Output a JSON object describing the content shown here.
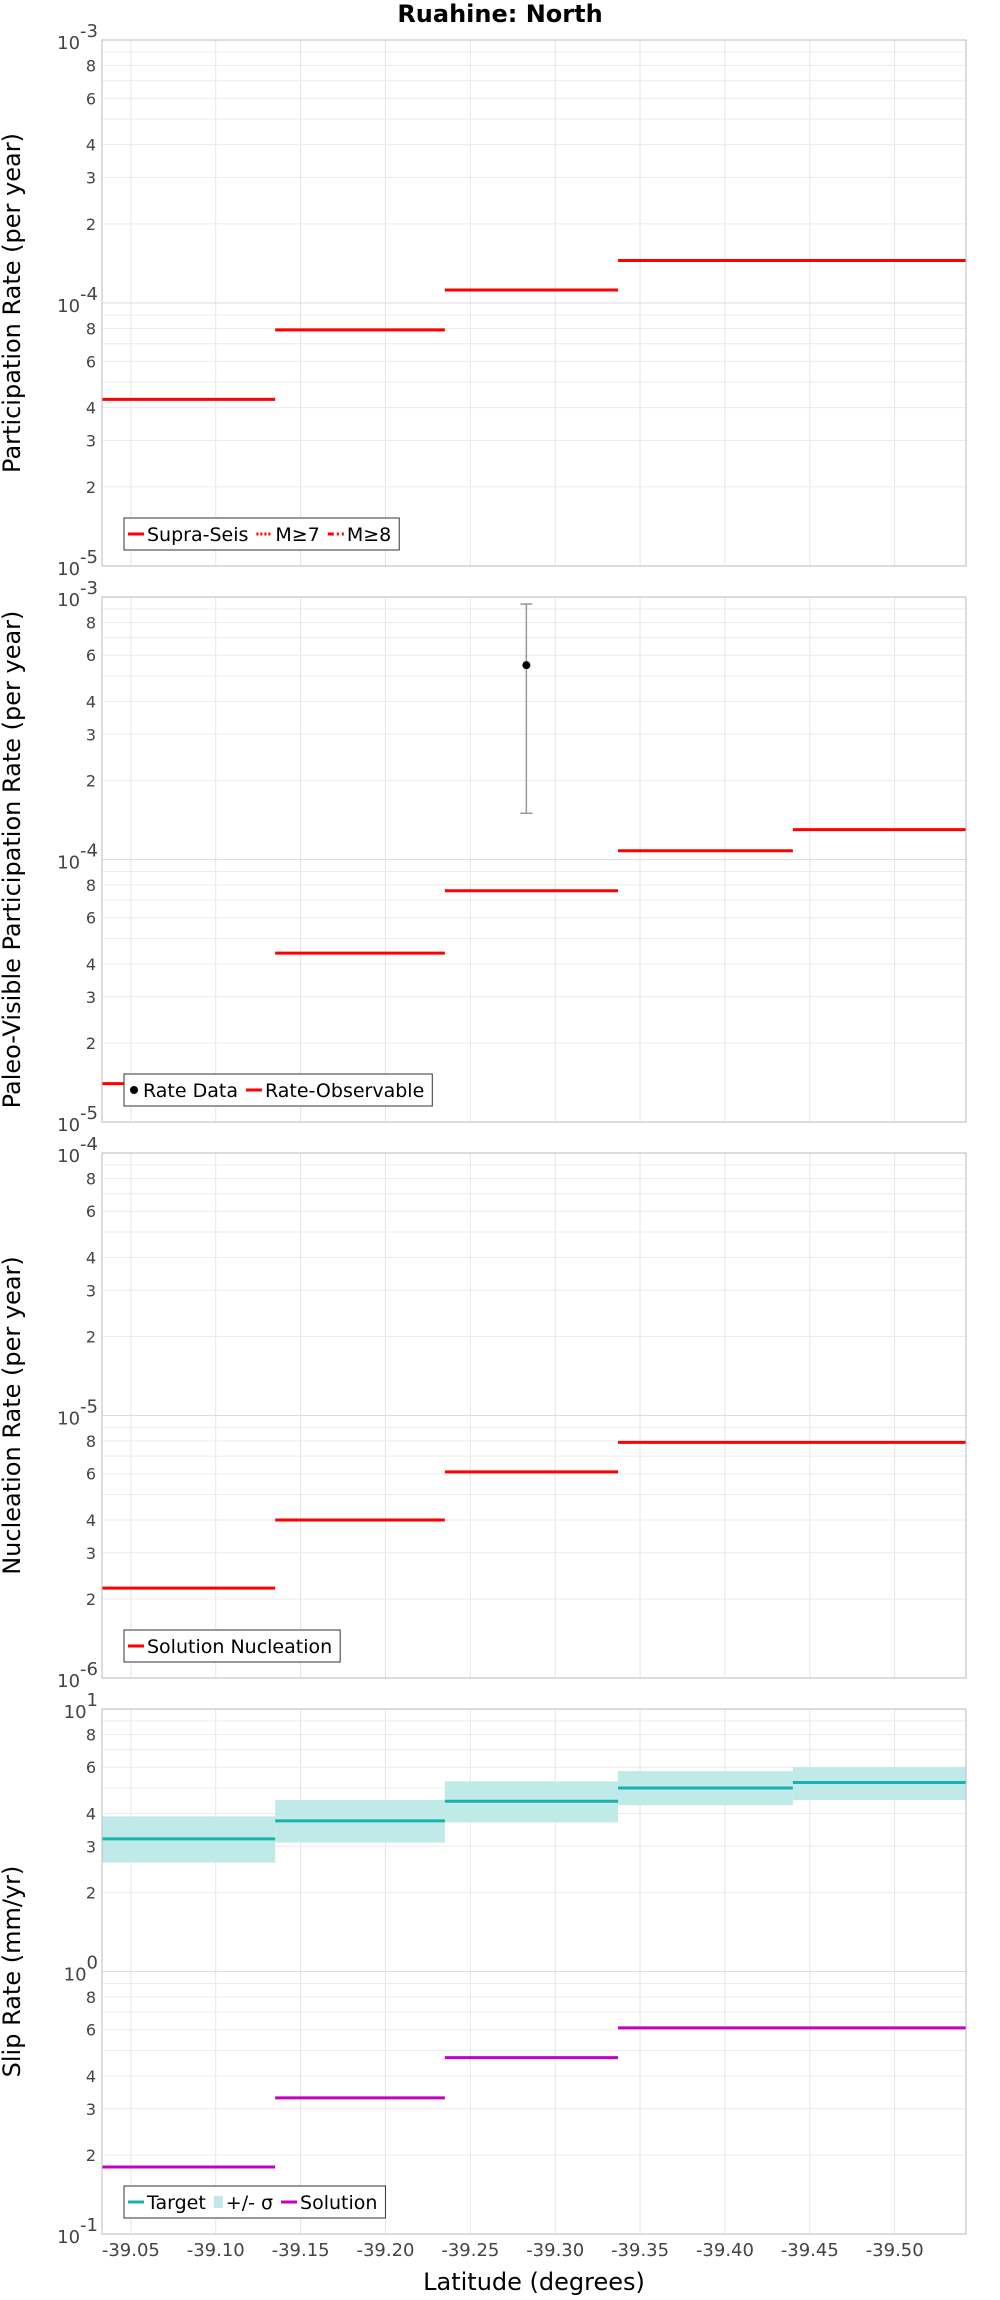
{
  "chart_data": {
    "type": "line",
    "title": "Ruahine: North",
    "xlabel": "Latitude (degrees)",
    "xlim": [
      -39.033,
      -39.542
    ],
    "xticks": [
      -39.05,
      -39.1,
      -39.15,
      -39.2,
      -39.25,
      -39.3,
      -39.35,
      -39.4,
      -39.45,
      -39.5
    ],
    "xtick_labels": [
      "-39.05",
      "-39.10",
      "-39.15",
      "-39.20",
      "-39.25",
      "-39.30",
      "-39.35",
      "-39.40",
      "-39.45",
      "-39.50"
    ],
    "panels": [
      {
        "key": "participation",
        "ylabel": "Participation Rate (per year)",
        "yscale": "log",
        "ylim": [
          1e-05,
          0.001
        ],
        "major_labels": [
          {
            "base": "10",
            "exp": "-5"
          },
          {
            "base": "10",
            "exp": "-4"
          },
          {
            "base": "10",
            "exp": "-3"
          }
        ],
        "minor_tick_labels": [
          "2",
          "3",
          "4",
          "6",
          "8"
        ],
        "series": [
          {
            "name": "Supra-Seis",
            "color": "#ff0000",
            "dash": "",
            "segments": [
              [
                -39.033,
                -39.135,
                4.3e-05
              ],
              [
                -39.135,
                -39.235,
                7.9e-05
              ],
              [
                -39.235,
                -39.337,
                0.000112
              ],
              [
                -39.337,
                -39.542,
                0.000145
              ]
            ]
          },
          {
            "name": "M≥7",
            "color": "#ff0000",
            "dash": "2,2",
            "segments": [
              [
                -39.235,
                -39.337,
                0.000112
              ]
            ]
          },
          {
            "name": "M≥8",
            "color": "#ff0000",
            "dash": "6,3,2,3",
            "segments": []
          }
        ],
        "legend": [
          {
            "label": "Supra-Seis",
            "style": "line",
            "color": "#ff0000",
            "dash": ""
          },
          {
            "label": "M≥7",
            "style": "line",
            "color": "#ff0000",
            "dash": "2,2"
          },
          {
            "label": "M≥8",
            "style": "line",
            "color": "#ff0000",
            "dash": "6,3,2,3"
          }
        ]
      },
      {
        "key": "paleo",
        "ylabel": "Paleo-Visible Participation Rate (per year)",
        "yscale": "log",
        "ylim": [
          1e-05,
          0.001
        ],
        "major_labels": [
          {
            "base": "10",
            "exp": "-5"
          },
          {
            "base": "10",
            "exp": "-4"
          },
          {
            "base": "10",
            "exp": "-3"
          }
        ],
        "minor_tick_labels": [
          "2",
          "3",
          "4",
          "6",
          "8"
        ],
        "series": [
          {
            "name": "Rate-Observable",
            "color": "#ff0000",
            "dash": "",
            "segments": [
              [
                -39.033,
                -39.135,
                1.4e-05
              ],
              [
                -39.135,
                -39.235,
                4.4e-05
              ],
              [
                -39.235,
                -39.337,
                7.6e-05
              ],
              [
                -39.337,
                -39.44,
                0.000108
              ],
              [
                -39.44,
                -39.542,
                0.00013
              ]
            ]
          }
        ],
        "points": [
          {
            "name": "Rate Data",
            "x": -39.283,
            "y": 0.00055,
            "err_low": 0.00015,
            "err_high": 0.00094,
            "color": "#000000"
          }
        ],
        "legend": [
          {
            "label": "Rate Data",
            "style": "dot",
            "color": "#000000",
            "dash": ""
          },
          {
            "label": "Rate-Observable",
            "style": "line",
            "color": "#ff0000",
            "dash": ""
          }
        ]
      },
      {
        "key": "nucleation",
        "ylabel": "Nucleation Rate (per year)",
        "yscale": "log",
        "ylim": [
          1e-06,
          0.0001
        ],
        "major_labels": [
          {
            "base": "10",
            "exp": "-6"
          },
          {
            "base": "10",
            "exp": "-5"
          },
          {
            "base": "10",
            "exp": "-4"
          }
        ],
        "minor_tick_labels": [
          "2",
          "3",
          "4",
          "6",
          "8"
        ],
        "series": [
          {
            "name": "Solution Nucleation",
            "color": "#ff0000",
            "dash": "",
            "segments": [
              [
                -39.033,
                -39.135,
                2.2e-06
              ],
              [
                -39.135,
                -39.235,
                4e-06
              ],
              [
                -39.235,
                -39.337,
                6.1e-06
              ],
              [
                -39.337,
                -39.542,
                7.9e-06
              ]
            ]
          }
        ],
        "legend": [
          {
            "label": "Solution Nucleation",
            "style": "line",
            "color": "#ff0000",
            "dash": ""
          }
        ]
      },
      {
        "key": "slip",
        "ylabel": "Slip Rate (mm/yr)",
        "yscale": "log",
        "ylim": [
          0.1,
          10
        ],
        "major_labels": [
          {
            "base": "10",
            "exp": "-1"
          },
          {
            "base": "10",
            "exp": "0"
          },
          {
            "base": "10",
            "exp": "1"
          }
        ],
        "minor_tick_labels": [
          "2",
          "3",
          "4",
          "6",
          "8"
        ],
        "bands": [
          {
            "name": "+/- σ",
            "color": "#bfeae8",
            "segments": [
              [
                -39.033,
                -39.135,
                2.6,
                3.9
              ],
              [
                -39.135,
                -39.235,
                3.1,
                4.5
              ],
              [
                -39.235,
                -39.337,
                3.7,
                5.3
              ],
              [
                -39.337,
                -39.44,
                4.3,
                5.8
              ],
              [
                -39.44,
                -39.542,
                4.5,
                6.0
              ]
            ]
          }
        ],
        "series": [
          {
            "name": "Target",
            "color": "#19b2ae",
            "dash": "",
            "segments": [
              [
                -39.033,
                -39.135,
                3.2
              ],
              [
                -39.135,
                -39.235,
                3.75
              ],
              [
                -39.235,
                -39.337,
                4.45
              ],
              [
                -39.337,
                -39.44,
                5.0
              ],
              [
                -39.44,
                -39.542,
                5.25
              ]
            ]
          },
          {
            "name": "Solution",
            "color": "#c400c4",
            "dash": "",
            "segments": [
              [
                -39.033,
                -39.135,
                0.18
              ],
              [
                -39.135,
                -39.235,
                0.33
              ],
              [
                -39.235,
                -39.337,
                0.47
              ],
              [
                -39.337,
                -39.542,
                0.61
              ]
            ]
          }
        ],
        "legend": [
          {
            "label": "Target",
            "style": "line",
            "color": "#19b2ae",
            "dash": ""
          },
          {
            "label": "+/- σ",
            "style": "block",
            "color": "#bfeae8",
            "dash": ""
          },
          {
            "label": "Solution",
            "style": "line",
            "color": "#c400c4",
            "dash": ""
          }
        ]
      }
    ]
  }
}
